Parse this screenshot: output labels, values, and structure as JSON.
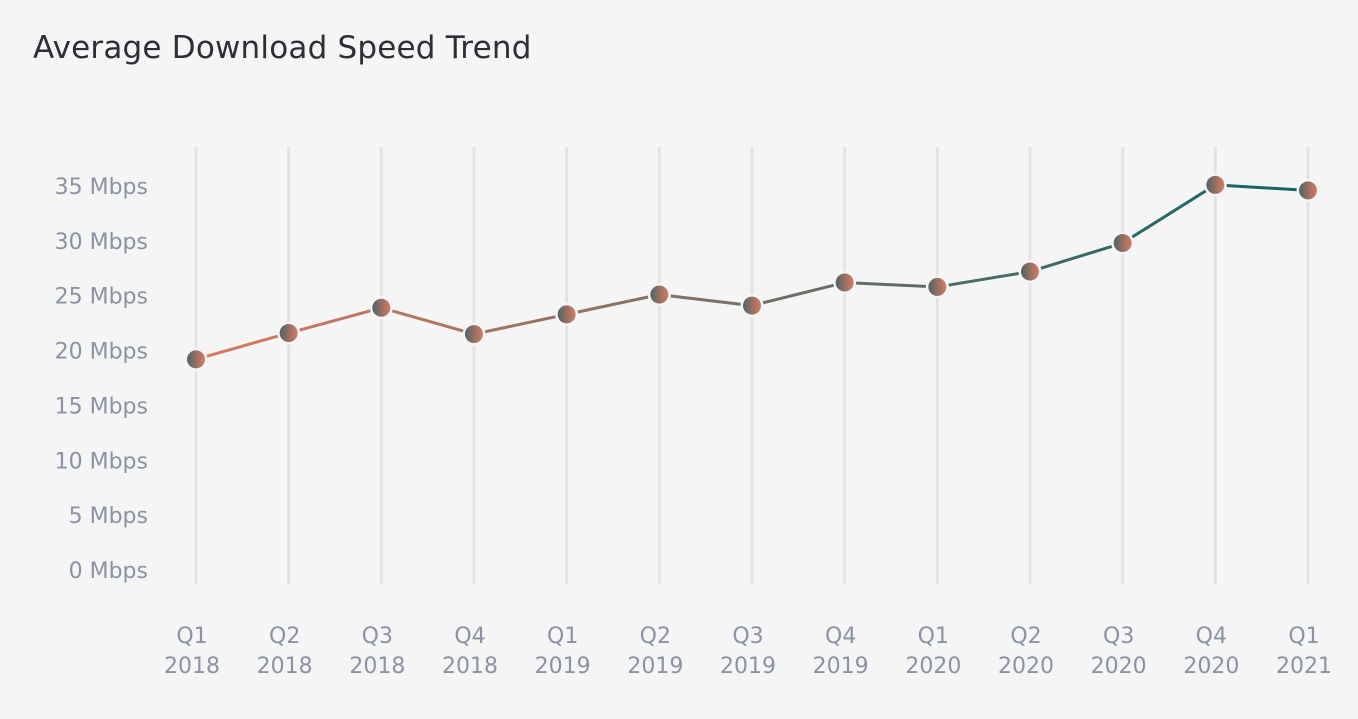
{
  "chart_data": {
    "type": "line",
    "title": "Average Download Speed Trend",
    "xlabel": "",
    "ylabel": "",
    "categories": [
      [
        "Q1",
        "2018"
      ],
      [
        "Q2",
        "2018"
      ],
      [
        "Q3",
        "2018"
      ],
      [
        "Q4",
        "2018"
      ],
      [
        "Q1",
        "2019"
      ],
      [
        "Q2",
        "2019"
      ],
      [
        "Q3",
        "2019"
      ],
      [
        "Q4",
        "2019"
      ],
      [
        "Q1",
        "2020"
      ],
      [
        "Q2",
        "2020"
      ],
      [
        "Q3",
        "2020"
      ],
      [
        "Q4",
        "2020"
      ],
      [
        "Q1",
        "2021"
      ]
    ],
    "series": [
      {
        "values": [
          19.2,
          21.6,
          23.9,
          21.5,
          23.3,
          25.1,
          24.1,
          26.2,
          25.8,
          27.2,
          29.8,
          35.1,
          34.6
        ]
      }
    ],
    "ylim": [
      0,
      35
    ],
    "y_ticks": [
      0,
      5,
      10,
      15,
      20,
      25,
      30,
      35
    ],
    "y_tick_labels": [
      "0 Mbps",
      "5 Mbps",
      "10 Mbps",
      "15 Mbps",
      "20 Mbps",
      "25 Mbps",
      "30 Mbps",
      "35 Mbps"
    ],
    "grid": "vertical",
    "legend": "none",
    "colors": {
      "line_start": "#d97a62",
      "line_end": "#0f6466",
      "grid": "#e3e3e3",
      "tick_text": "#8a93a3",
      "background": "#f5f5f5"
    }
  }
}
